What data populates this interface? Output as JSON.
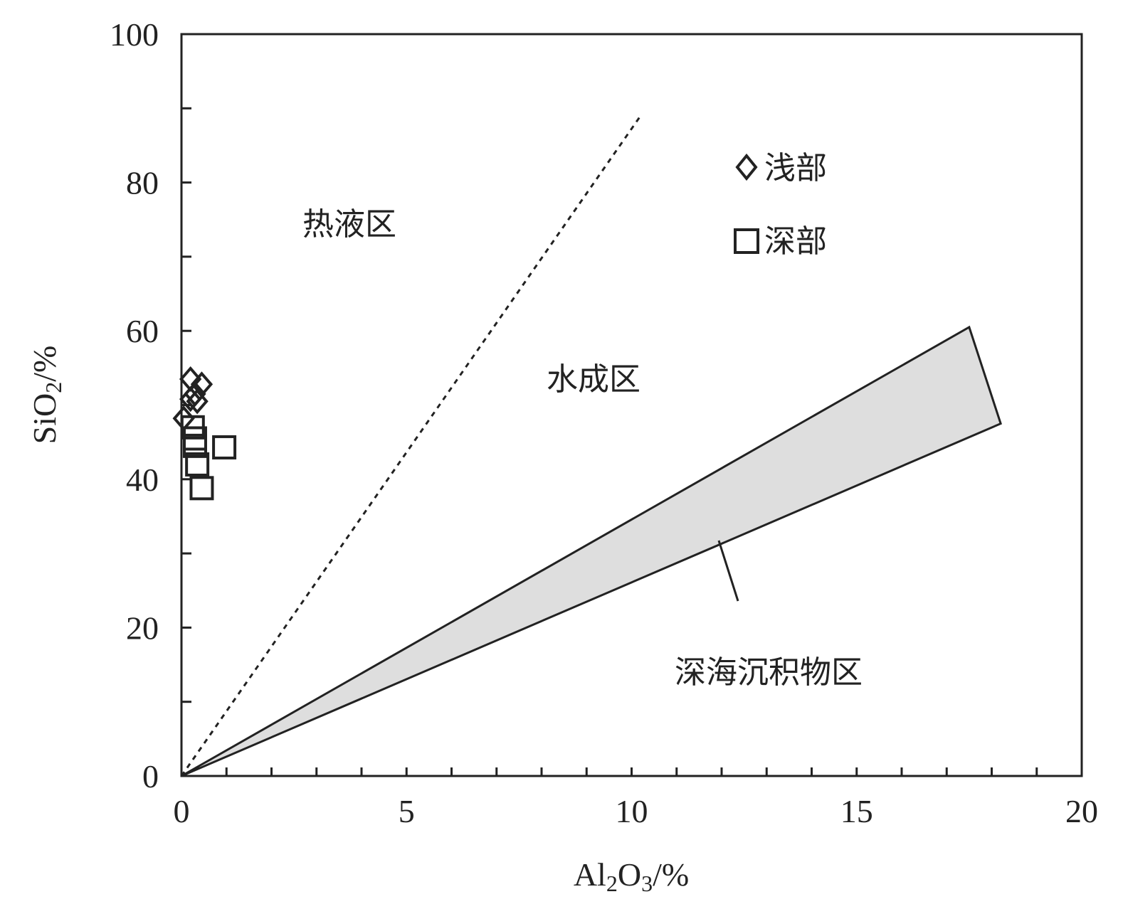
{
  "chart_data": {
    "type": "scatter",
    "title": "",
    "xlabel": "Al2O3/%",
    "ylabel": "SiO2/%",
    "xlabel_parts": {
      "main1": "Al",
      "sub1": "2",
      "main2": "O",
      "sub2": "3",
      "tail": "/%"
    },
    "ylabel_parts": {
      "main": "SiO",
      "sub": "2",
      "tail": "/%"
    },
    "xlim": [
      0,
      20
    ],
    "ylim": [
      0,
      100
    ],
    "x_ticks": [
      "0",
      "5",
      "10",
      "15",
      "20"
    ],
    "y_ticks": [
      "0",
      "20",
      "40",
      "60",
      "80",
      "100"
    ],
    "grid": false,
    "legend_position": "top-right",
    "series": [
      {
        "name": "浅部",
        "marker": "diamond",
        "points": [
          {
            "x": 0.2,
            "y": 53.5
          },
          {
            "x": 0.45,
            "y": 52.8
          },
          {
            "x": 0.3,
            "y": 51.5
          },
          {
            "x": 0.2,
            "y": 50.8
          },
          {
            "x": 0.35,
            "y": 50.5
          },
          {
            "x": 0.05,
            "y": 48.2
          }
        ]
      },
      {
        "name": "深部",
        "marker": "square",
        "points": [
          {
            "x": 0.25,
            "y": 47.0
          },
          {
            "x": 0.3,
            "y": 45.5
          },
          {
            "x": 0.3,
            "y": 44.5
          },
          {
            "x": 0.95,
            "y": 44.3
          },
          {
            "x": 0.35,
            "y": 42.0
          },
          {
            "x": 0.45,
            "y": 38.8
          }
        ]
      }
    ],
    "hydrothermal_boundary": [
      [
        0,
        0
      ],
      [
        10.2,
        89
      ]
    ],
    "deep_sea_region": [
      [
        0,
        0
      ],
      [
        17.5,
        60.5
      ],
      [
        18.2,
        47.5
      ]
    ],
    "regions": {
      "hydrothermal": "热液区",
      "hydrogenous": "水成区",
      "deep_sea": "深海沉积物区"
    },
    "colors": {
      "axis": "#222222",
      "region_fill": "#dedede",
      "marker_stroke": "#222222"
    }
  }
}
